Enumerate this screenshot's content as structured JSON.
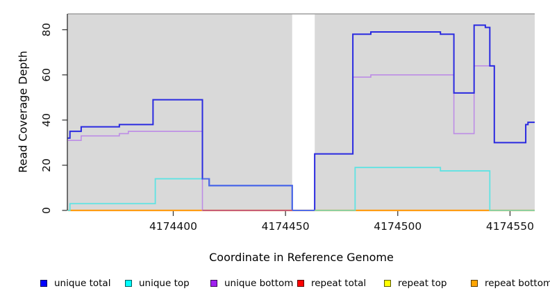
{
  "chart_data": {
    "type": "line",
    "subtype": "step-after",
    "title": "",
    "xlabel": "Coordinate in Reference Genome",
    "ylabel": "Read Coverage Depth",
    "xlim": [
      4174353,
      4174561
    ],
    "ylim": [
      0,
      87
    ],
    "x_ticks": [
      4174400,
      4174450,
      4174500,
      4174550
    ],
    "x_tick_labels": [
      "4174400",
      "4174450",
      "4174500",
      "4174550"
    ],
    "y_ticks": [
      0,
      20,
      40,
      60,
      80
    ],
    "y_tick_labels": [
      "0",
      "20",
      "40",
      "60",
      "80"
    ],
    "grid": false,
    "legend_position": "bottom",
    "plot_bg": "#d9d9d9",
    "plot_top_border_color": "#9e9e9e",
    "gap_region": {
      "from": 4174453,
      "to": 4174463,
      "color": "#ffffff"
    },
    "series": [
      {
        "name": "repeat total",
        "color": "#e02020",
        "width": 1.6,
        "points": [
          [
            4174353,
            0
          ],
          [
            4174561,
            0
          ]
        ]
      },
      {
        "name": "repeat top",
        "color": "#f2f220",
        "width": 1.6,
        "points": [
          [
            4174353,
            0
          ],
          [
            4174561,
            0
          ]
        ]
      },
      {
        "name": "repeat bottom",
        "color": "#ff9d14",
        "width": 2.2,
        "points": [
          [
            4174353,
            0
          ],
          [
            4174561,
            0
          ]
        ]
      },
      {
        "name": "unique bottom",
        "color": "#bd8ce6",
        "width": 1.6,
        "points": [
          [
            4174353,
            31
          ],
          [
            4174359,
            33
          ],
          [
            4174376,
            34
          ],
          [
            4174380,
            35
          ],
          [
            4174413,
            0
          ],
          [
            4174463,
            25
          ],
          [
            4174480,
            59
          ],
          [
            4174488,
            60
          ],
          [
            4174525,
            34
          ],
          [
            4174534,
            64
          ],
          [
            4174543,
            30
          ],
          [
            4174557,
            38
          ],
          [
            4174558,
            39
          ],
          [
            4174561,
            39
          ]
        ]
      },
      {
        "name": "unique top",
        "color": "#5fe3e3",
        "width": 1.8,
        "points": [
          [
            4174353,
            0
          ],
          [
            4174354,
            3
          ],
          [
            4174392,
            14
          ],
          [
            4174413,
            14
          ],
          [
            4174416,
            11
          ],
          [
            4174453,
            0
          ],
          [
            4174481,
            19
          ],
          [
            4174519,
            17.5
          ],
          [
            4174541,
            0
          ],
          [
            4174561,
            0
          ]
        ]
      },
      {
        "name": "unique total",
        "color": "#2a2ae0",
        "width": 2,
        "points": [
          [
            4174353,
            32
          ],
          [
            4174354,
            35
          ],
          [
            4174359,
            37
          ],
          [
            4174376,
            38
          ],
          [
            4174391,
            49
          ],
          [
            4174413,
            14
          ],
          [
            4174416,
            11
          ],
          [
            4174453,
            0
          ],
          [
            4174463,
            25
          ],
          [
            4174480,
            78
          ],
          [
            4174488,
            79
          ],
          [
            4174519,
            78
          ],
          [
            4174525,
            52
          ],
          [
            4174534,
            82
          ],
          [
            4174539,
            81
          ],
          [
            4174541,
            64
          ],
          [
            4174543,
            30
          ],
          [
            4174557,
            38
          ],
          [
            4174558,
            39
          ],
          [
            4174561,
            39
          ]
        ]
      }
    ],
    "render_overlays": [
      {
        "name": "unique-total-over-top-blend",
        "color": "#4f6ce8",
        "width": 2,
        "points": [
          [
            4174413,
            14
          ],
          [
            4174416,
            11
          ],
          [
            4174453,
            0
          ],
          [
            4174463,
            0
          ]
        ]
      },
      {
        "name": "unique-bottom-over-repeat-blend",
        "color": "#c75d75",
        "width": 2,
        "points": [
          [
            4174413,
            0
          ],
          [
            4174453,
            0
          ]
        ]
      },
      {
        "name": "unique-top-over-repeat-blend-left",
        "color": "#8ecf9e",
        "width": 2,
        "points": [
          [
            4174463,
            0
          ],
          [
            4174481,
            0
          ]
        ]
      },
      {
        "name": "unique-top-over-repeat-blend-right",
        "color": "#8ecf9e",
        "width": 2,
        "points": [
          [
            4174541,
            0
          ],
          [
            4174561,
            0
          ]
        ]
      }
    ]
  },
  "legend": {
    "items": [
      {
        "label": "unique total",
        "color": "#0000ff"
      },
      {
        "label": "unique top",
        "color": "#00ffff"
      },
      {
        "label": "unique bottom",
        "color": "#a020f0"
      },
      {
        "label": "repeat total",
        "color": "#ff0000"
      },
      {
        "label": "repeat top",
        "color": "#ffff00"
      },
      {
        "label": "repeat bottom",
        "color": "#ffa500"
      }
    ]
  }
}
